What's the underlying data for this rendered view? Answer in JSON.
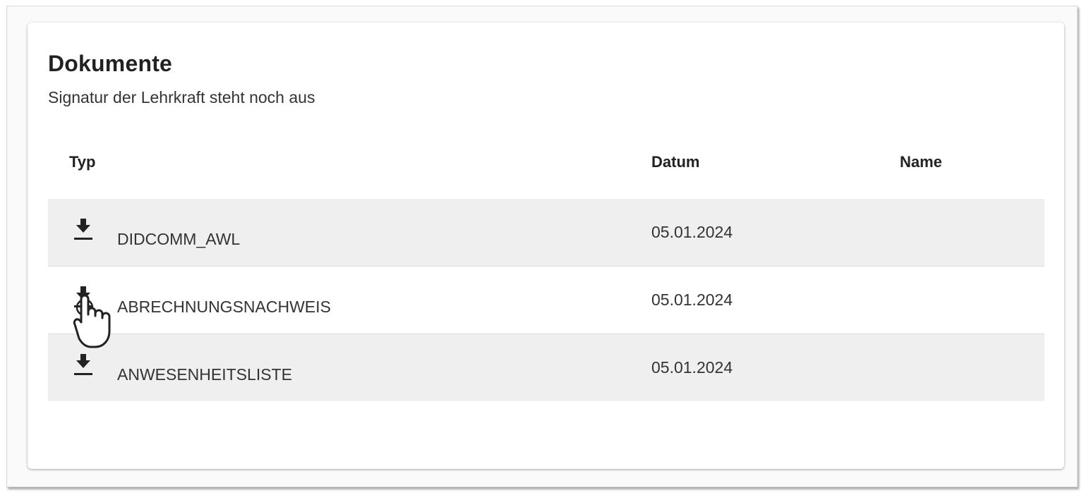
{
  "card": {
    "title": "Dokumente",
    "subtitle": "Signatur der Lehrkraft steht noch aus"
  },
  "table": {
    "headers": {
      "typ": "Typ",
      "datum": "Datum",
      "name": "Name"
    },
    "rows": [
      {
        "icon": "download-icon",
        "typ": "DIDCOMM_AWL",
        "datum": "05.01.2024",
        "name": ""
      },
      {
        "icon": "download-icon",
        "typ": "ABRECHNUNGSNACHWEIS",
        "datum": "05.01.2024",
        "name": ""
      },
      {
        "icon": "download-icon",
        "typ": "ANWESENHEITSLISTE",
        "datum": "05.01.2024",
        "name": ""
      }
    ]
  },
  "colors": {
    "row_shade": "#efefef",
    "text": "#222222"
  }
}
